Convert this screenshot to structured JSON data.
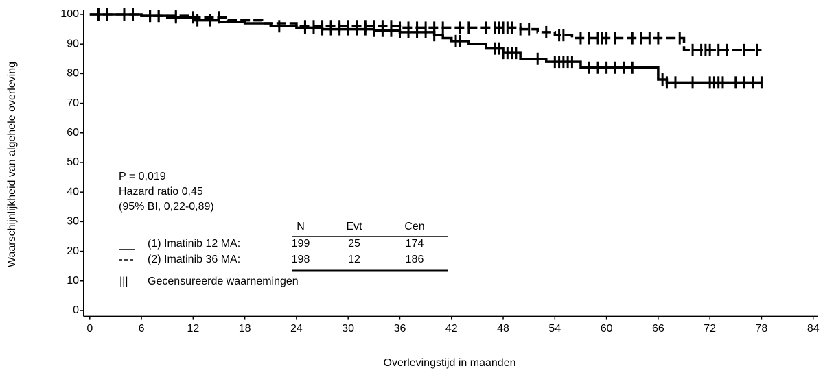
{
  "chart_data": {
    "type": "km",
    "y_label": "Waarschijnlijkheid van algehele overleving",
    "x_label": "Overlevingstijd in maanden",
    "xlim": [
      -0.7,
      84.5
    ],
    "ylim": [
      -2,
      101.5
    ],
    "xticks": [
      0,
      6,
      12,
      18,
      24,
      30,
      36,
      42,
      48,
      54,
      60,
      66,
      72,
      78,
      84
    ],
    "yticks": [
      0,
      10,
      20,
      30,
      40,
      50,
      60,
      70,
      80,
      90,
      100
    ],
    "annotations": [
      "P = 0,019",
      "Hazard ratio 0,45",
      "(95% BI, 0,22-0,89)"
    ],
    "series": [
      {
        "name": "(1) Imatinib 12 MA:",
        "color": "#000000",
        "dash": "solid",
        "x": [
          0,
          3,
          6,
          9,
          12,
          15,
          18,
          21,
          24,
          27,
          30,
          33,
          36,
          40,
          41,
          42,
          44,
          46,
          48,
          50,
          53,
          57,
          65,
          66,
          67,
          78
        ],
        "values": [
          100,
          100,
          99.5,
          99,
          98,
          97.5,
          97,
          96,
          95.5,
          95,
          95,
          94.5,
          94,
          93,
          92,
          91,
          90,
          88.5,
          87,
          85,
          84,
          82,
          82,
          78,
          77,
          77
        ],
        "censored": [
          1,
          2,
          4,
          7,
          8,
          10,
          12.5,
          14,
          22,
          25,
          26,
          27,
          28,
          29,
          30,
          31,
          32,
          33,
          34,
          35,
          36,
          37,
          38,
          39,
          40,
          42.5,
          43,
          47,
          47.5,
          48,
          48.5,
          49,
          49.5,
          52,
          54,
          54.5,
          55,
          55.5,
          56,
          58,
          59,
          60,
          61,
          62,
          63,
          66.5,
          67,
          68,
          70,
          72,
          72.5,
          73,
          73.5,
          75,
          76,
          77,
          78
        ],
        "N": 199,
        "Evt": 25,
        "Cen": 174
      },
      {
        "name": "(2) Imatinib 36 MA:",
        "color": "#000000",
        "dash": "dashed",
        "x": [
          0,
          6,
          12,
          16,
          20,
          24,
          30,
          36,
          42,
          48,
          50,
          52,
          54,
          56,
          62,
          68,
          69,
          78
        ],
        "values": [
          100,
          99.5,
          99,
          98,
          97,
          96,
          96,
          95.5,
          95.5,
          95.5,
          95,
          94,
          93,
          92,
          92,
          92,
          88,
          88
        ],
        "censored": [
          1,
          2,
          5,
          7,
          8,
          10,
          12,
          15,
          25,
          26,
          27,
          28,
          29,
          30,
          31,
          32,
          33,
          34,
          35,
          36,
          37,
          38,
          39,
          40,
          41,
          43,
          44,
          46,
          47,
          47.5,
          48,
          48.5,
          49,
          50,
          51,
          53,
          54.5,
          55,
          57,
          58,
          59,
          59.5,
          60,
          61,
          63,
          64,
          65,
          66,
          68.5,
          70,
          71,
          71.5,
          72,
          73,
          74,
          76,
          77.5
        ],
        "N": 198,
        "Evt": 12,
        "Cen": 186
      }
    ],
    "table_columns": [
      "N",
      "Evt",
      "Cen"
    ],
    "censored_symbol": "|||",
    "censored_label": "Gecensureerde waarnemingen"
  }
}
